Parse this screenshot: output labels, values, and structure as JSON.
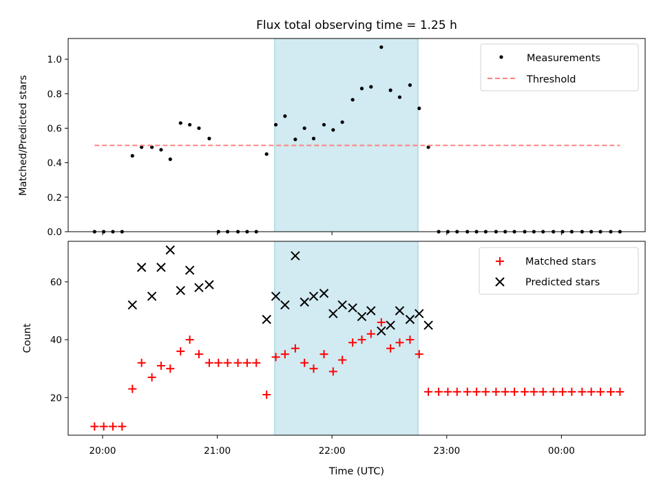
{
  "chart_data": {
    "type": "scatter",
    "title": "Flux total observing time = 1.25 h",
    "xlabel": "Time (UTC)",
    "x_tick_labels": [
      "20:00",
      "21:00",
      "22:00",
      "23:00",
      "00:00"
    ],
    "x_tick_values": [
      20,
      21,
      22,
      23,
      24
    ],
    "xlim": [
      19.7,
      24.73
    ],
    "shaded_interval": [
      21.5,
      22.75
    ],
    "shade_color": "#add8e6",
    "top": {
      "ylabel": "Matched/Predicted stars",
      "ylim": [
        0,
        1.12
      ],
      "y_ticks": [
        0,
        0.2,
        0.4,
        0.6,
        0.8,
        1.0
      ],
      "y_tick_labels": [
        "0.0",
        "0.2",
        "0.4",
        "0.6",
        "0.8",
        "1.0"
      ],
      "legend_position": "upper right",
      "series": [
        {
          "name": "Measurements",
          "marker": "dot",
          "color": "#000000",
          "x": [
            19.93,
            20.01,
            20.09,
            20.17,
            20.26,
            20.34,
            20.43,
            20.51,
            20.59,
            20.68,
            20.76,
            20.84,
            20.93,
            21.01,
            21.09,
            21.18,
            21.26,
            21.34,
            21.43,
            21.51,
            21.59,
            21.68,
            21.76,
            21.84,
            21.93,
            22.01,
            22.09,
            22.18,
            22.26,
            22.34,
            22.43,
            22.51,
            22.59,
            22.68,
            22.76,
            22.84,
            22.93,
            23.01,
            23.09,
            23.18,
            23.26,
            23.34,
            23.43,
            23.51,
            23.59,
            23.68,
            23.76,
            23.84,
            23.93,
            24.01,
            24.09,
            24.18,
            24.26,
            24.34,
            24.43,
            24.51
          ],
          "y": [
            0,
            0,
            0,
            0,
            0.44,
            0.49,
            0.49,
            0.475,
            0.42,
            0.63,
            0.62,
            0.6,
            0.54,
            0,
            0,
            0,
            0,
            0,
            0.45,
            0.62,
            0.67,
            0.535,
            0.6,
            0.54,
            0.62,
            0.59,
            0.635,
            0.765,
            0.83,
            0.84,
            1.07,
            0.82,
            0.78,
            0.85,
            0.715,
            0.49,
            0,
            0,
            0,
            0,
            0,
            0,
            0,
            0,
            0,
            0,
            0,
            0,
            0,
            0,
            0,
            0,
            0,
            0,
            0,
            0
          ]
        },
        {
          "name": "Threshold",
          "style": "dashed",
          "color": "#ff7f7f",
          "x": [
            19.93,
            24.51
          ],
          "y": [
            0.5,
            0.5
          ]
        }
      ]
    },
    "bottom": {
      "ylabel": "Count",
      "ylim": [
        7,
        74
      ],
      "y_ticks": [
        20,
        40,
        60
      ],
      "y_tick_labels": [
        "20",
        "40",
        "60"
      ],
      "legend_position": "upper right",
      "series": [
        {
          "name": "Matched stars",
          "marker": "plus",
          "color": "#ff0000",
          "x": [
            19.93,
            20.01,
            20.09,
            20.17,
            20.26,
            20.34,
            20.43,
            20.51,
            20.59,
            20.68,
            20.76,
            20.84,
            20.93,
            21.01,
            21.09,
            21.18,
            21.26,
            21.34,
            21.43,
            21.51,
            21.59,
            21.68,
            21.76,
            21.84,
            21.93,
            22.01,
            22.09,
            22.18,
            22.26,
            22.34,
            22.43,
            22.51,
            22.59,
            22.68,
            22.76,
            22.84,
            22.93,
            23.01,
            23.09,
            23.18,
            23.26,
            23.34,
            23.43,
            23.51,
            23.59,
            23.68,
            23.76,
            23.84,
            23.93,
            24.01,
            24.09,
            24.18,
            24.26,
            24.34,
            24.43,
            24.51
          ],
          "y": [
            10,
            10,
            10,
            10,
            23,
            32,
            27,
            31,
            30,
            36,
            40,
            35,
            32,
            32,
            32,
            32,
            32,
            32,
            21,
            34,
            35,
            37,
            32,
            30,
            35,
            29,
            33,
            39,
            40,
            42,
            46,
            37,
            39,
            40,
            35,
            22,
            22,
            22,
            22,
            22,
            22,
            22,
            22,
            22,
            22,
            22,
            22,
            22,
            22,
            22,
            22,
            22,
            22,
            22,
            22,
            22
          ]
        },
        {
          "name": "Predicted stars",
          "marker": "x",
          "color": "#000000",
          "x": [
            20.26,
            20.34,
            20.43,
            20.51,
            20.59,
            20.68,
            20.76,
            20.84,
            20.93,
            21.43,
            21.51,
            21.59,
            21.68,
            21.76,
            21.84,
            21.93,
            22.01,
            22.09,
            22.18,
            22.26,
            22.34,
            22.43,
            22.51,
            22.59,
            22.68,
            22.76,
            22.84
          ],
          "y": [
            52,
            65,
            55,
            65,
            71,
            57,
            64,
            58,
            59,
            47,
            55,
            52,
            69,
            53,
            55,
            56,
            49,
            52,
            51,
            48,
            50,
            43,
            45,
            50,
            47,
            49,
            45
          ]
        }
      ]
    }
  }
}
